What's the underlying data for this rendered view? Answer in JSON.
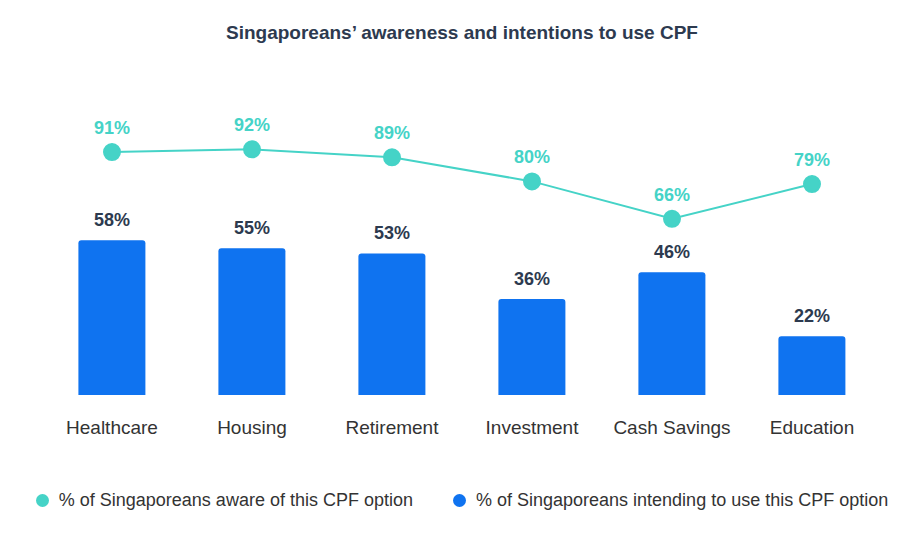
{
  "chart_data": {
    "type": "bar",
    "title": "Singaporeans’ awareness and intentions to use CPF",
    "categories": [
      "Healthcare",
      "Housing",
      "Retirement",
      "Investment",
      "Cash Savings",
      "Education"
    ],
    "series": [
      {
        "name": "% of Singaporeans aware of this CPF option",
        "type": "line",
        "marker": "circle",
        "color": "#45d3c7",
        "values": [
          91,
          92,
          89,
          80,
          66,
          79
        ],
        "value_labels": [
          "91%",
          "92%",
          "89%",
          "80%",
          "66%",
          "79%"
        ]
      },
      {
        "name": "% of Singaporeans intending to use this CPF option",
        "type": "bar",
        "color": "#0f73f0",
        "values": [
          58,
          55,
          53,
          36,
          46,
          22
        ],
        "value_labels": [
          "58%",
          "55%",
          "53%",
          "36%",
          "46%",
          "22%"
        ]
      }
    ],
    "ylim": [
      0,
      100
    ],
    "tick_labels": "x",
    "data_labels": true,
    "legend": "bottom"
  }
}
